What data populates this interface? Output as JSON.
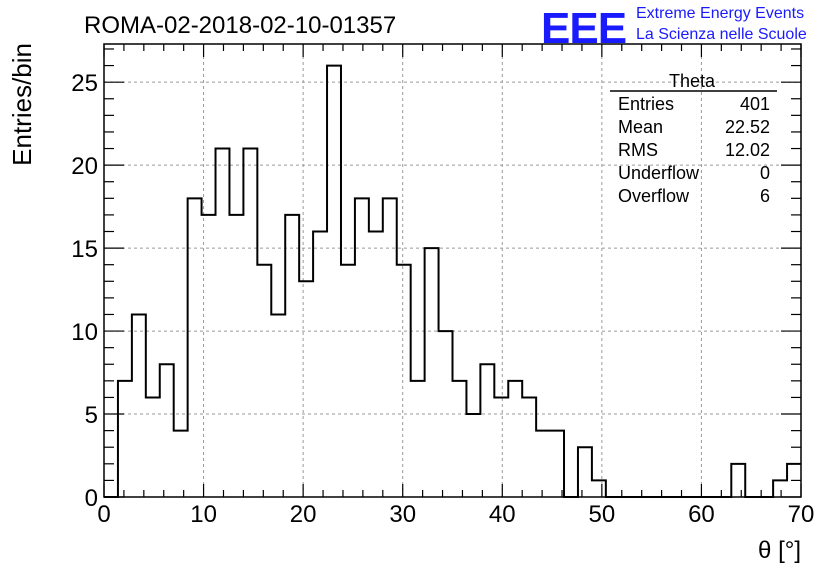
{
  "title": "ROMA-02-2018-02-10-01357",
  "logo": {
    "mark": "EEE",
    "line1": "Extreme Energy Events",
    "line2": "La Scienza nelle Scuole",
    "color": "#1a1aff"
  },
  "stats": {
    "title": "Theta",
    "rows": [
      {
        "label": "Entries",
        "value": "401"
      },
      {
        "label": "Mean",
        "value": "22.52"
      },
      {
        "label": "RMS",
        "value": "12.02"
      },
      {
        "label": "Underflow",
        "value": "0"
      },
      {
        "label": "Overflow",
        "value": "6"
      }
    ]
  },
  "chart_data": {
    "type": "bar",
    "style": "step-histogram",
    "title": "ROMA-02-2018-02-10-01357",
    "xlabel": "θ [°]",
    "ylabel": "Entries/bin",
    "xlim": [
      0,
      70
    ],
    "ylim": [
      0,
      27.3
    ],
    "bin_width": 1.4,
    "x_ticks": [
      0,
      10,
      20,
      30,
      40,
      50,
      60,
      70
    ],
    "y_ticks": [
      0,
      5,
      10,
      15,
      20,
      25
    ],
    "grid": true,
    "line_color": "#000000",
    "values": [
      0,
      7,
      11,
      6,
      8,
      4,
      18,
      17,
      21,
      17,
      21,
      14,
      11,
      17,
      13,
      16,
      26,
      14,
      18,
      16,
      18,
      14,
      7,
      15,
      10,
      7,
      5,
      8,
      6,
      7,
      6,
      4,
      4,
      0,
      3,
      1,
      0,
      0,
      0,
      0,
      0,
      0,
      0,
      0,
      0,
      2,
      0,
      0,
      1,
      2
    ]
  }
}
